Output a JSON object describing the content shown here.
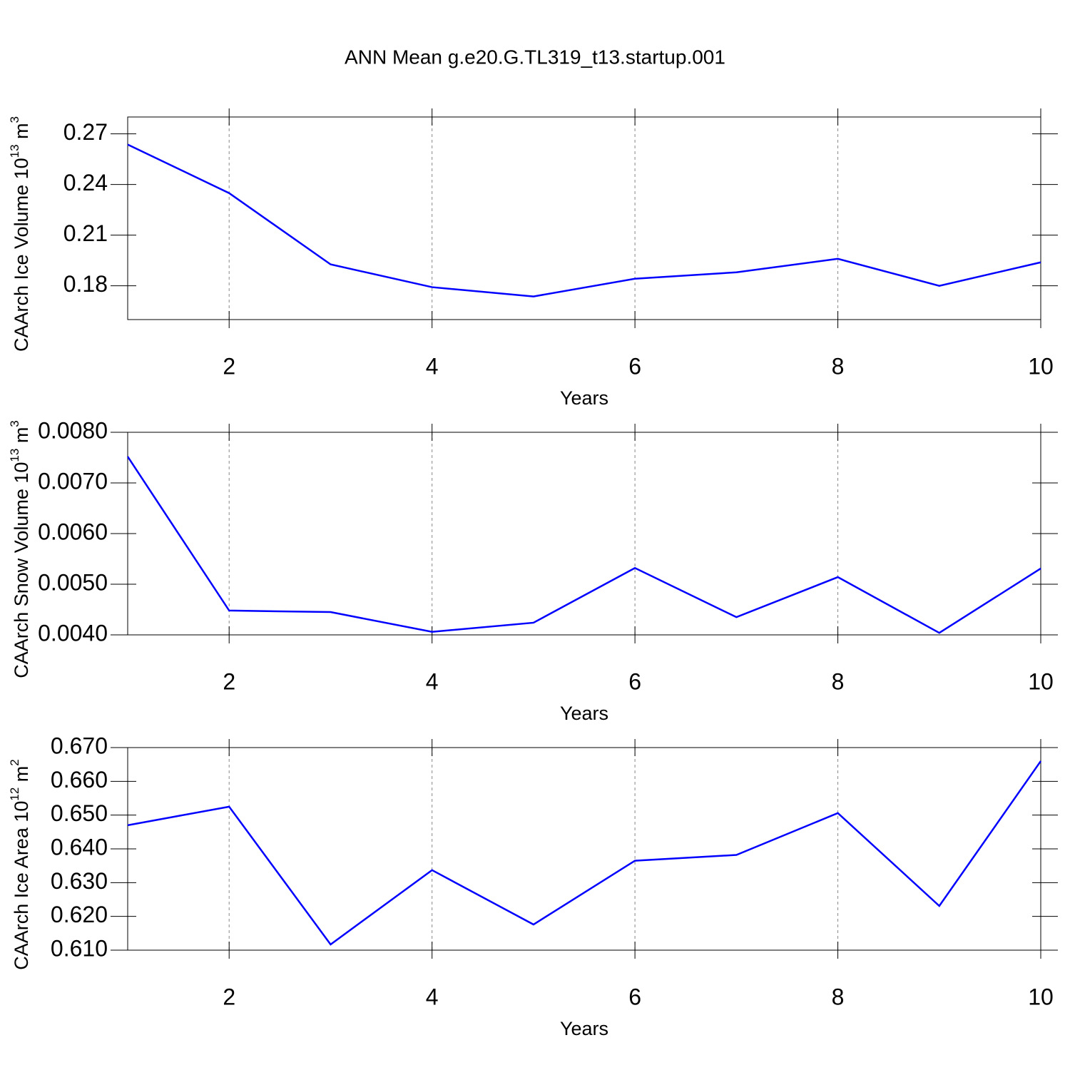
{
  "title": "ANN Mean g.e20.G.TL319_t13.startup.001",
  "chart_data": [
    {
      "type": "line",
      "ylabel": {
        "text": "CAArch Ice Volume 10",
        "exp": "13",
        "unit": " m",
        "unit_exp": "3"
      },
      "xlabel": "Years",
      "x": [
        1,
        2,
        3,
        4,
        5,
        6,
        7,
        8,
        9,
        10
      ],
      "series": [
        {
          "color": "#0000ff",
          "values": [
            0.2637,
            0.2349,
            0.1927,
            0.1792,
            0.1737,
            0.1842,
            0.188,
            0.196,
            0.18,
            0.1939
          ]
        }
      ],
      "xlim": [
        1,
        10
      ],
      "xticks": [
        2,
        4,
        6,
        8,
        10
      ],
      "ylim": [
        0.16,
        0.28
      ],
      "yticks": [
        0.18,
        0.21,
        0.24,
        0.27
      ],
      "grid": "x"
    },
    {
      "type": "line",
      "ylabel": {
        "text": "CAArch Snow Volume 10",
        "exp": "13",
        "unit": " m",
        "unit_exp": "3"
      },
      "xlabel": "Years",
      "x": [
        1,
        2,
        3,
        4,
        5,
        6,
        7,
        8,
        9,
        10
      ],
      "series": [
        {
          "color": "#0000ff",
          "values": [
            0.00752,
            0.00448,
            0.00445,
            0.00406,
            0.00424,
            0.00532,
            0.00435,
            0.00514,
            0.00404,
            0.00531
          ]
        }
      ],
      "xlim": [
        1,
        10
      ],
      "xticks": [
        2,
        4,
        6,
        8,
        10
      ],
      "ylim": [
        0.004,
        0.008
      ],
      "yticks": [
        {
          "value": 0.004,
          "label": "0.0040"
        },
        {
          "value": 0.005,
          "label": "0.0050"
        },
        {
          "value": 0.006,
          "label": "0.0060"
        },
        {
          "value": 0.007,
          "label": "0.0070"
        },
        {
          "value": 0.008,
          "label": "0.0080"
        }
      ],
      "grid": "x"
    },
    {
      "type": "line",
      "ylabel": {
        "text": "CAArch Ice Area 10",
        "exp": "12",
        "unit": " m",
        "unit_exp": "2"
      },
      "xlabel": "Years",
      "x": [
        1,
        2,
        3,
        4,
        5,
        6,
        7,
        8,
        9,
        10
      ],
      "series": [
        {
          "color": "#0000ff",
          "values": [
            0.647,
            0.6525,
            0.6117,
            0.6337,
            0.6176,
            0.6365,
            0.6382,
            0.6506,
            0.6231,
            0.666
          ]
        }
      ],
      "xlim": [
        1,
        10
      ],
      "xticks": [
        2,
        4,
        6,
        8,
        10
      ],
      "ylim": [
        0.61,
        0.67
      ],
      "yticks": [
        {
          "value": 0.61,
          "label": "0.610"
        },
        {
          "value": 0.62,
          "label": "0.620"
        },
        {
          "value": 0.63,
          "label": "0.630"
        },
        {
          "value": 0.64,
          "label": "0.640"
        },
        {
          "value": 0.65,
          "label": "0.650"
        },
        {
          "value": 0.66,
          "label": "0.660"
        },
        {
          "value": 0.67,
          "label": "0.670"
        }
      ],
      "grid": "x"
    }
  ]
}
